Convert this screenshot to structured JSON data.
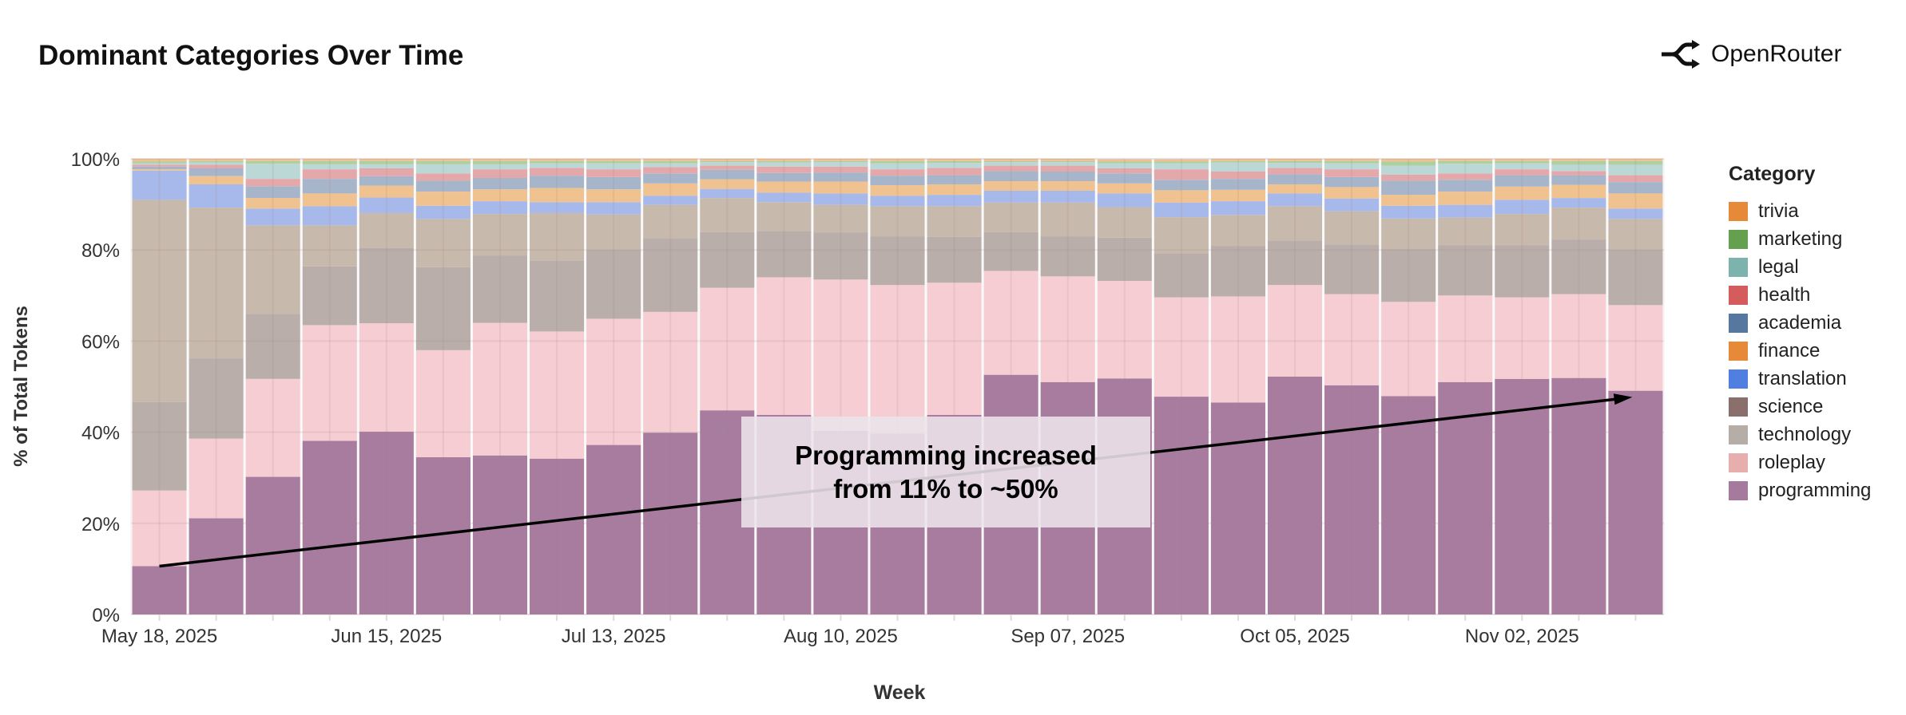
{
  "header": {
    "title": "Dominant Categories Over Time",
    "brand": "OpenRouter"
  },
  "annotation": {
    "line1": "Programming increased",
    "line2": "from 11% to ~50%"
  },
  "chart_data": {
    "type": "bar",
    "stacked": true,
    "normalized": true,
    "xlabel": "Week",
    "ylabel": "% of Total Tokens",
    "ylim": [
      0,
      100
    ],
    "y_ticks": [
      "0%",
      "20%",
      "40%",
      "60%",
      "80%",
      "100%"
    ],
    "grid": true,
    "legend_title": "Category",
    "legend_position": "right",
    "categories": [
      "May 18, 2025",
      "May 25, 2025",
      "Jun 01, 2025",
      "Jun 08, 2025",
      "Jun 15, 2025",
      "Jun 22, 2025",
      "Jun 29, 2025",
      "Jul 06, 2025",
      "Jul 13, 2025",
      "Jul 20, 2025",
      "Jul 27, 2025",
      "Aug 03, 2025",
      "Aug 10, 2025",
      "Aug 17, 2025",
      "Aug 24, 2025",
      "Aug 31, 2025",
      "Sep 07, 2025",
      "Sep 14, 2025",
      "Sep 21, 2025",
      "Sep 28, 2025",
      "Oct 05, 2025",
      "Oct 12, 2025",
      "Oct 19, 2025",
      "Oct 26, 2025",
      "Nov 02, 2025",
      "Nov 09, 2025",
      "Nov 16, 2025"
    ],
    "x_tick_labels": [
      "May 18, 2025",
      "Jun 15, 2025",
      "Jul 13, 2025",
      "Aug 10, 2025",
      "Sep 07, 2025",
      "Oct 05, 2025",
      "Nov 02, 2025"
    ],
    "legend_order": [
      "trivia",
      "marketing",
      "legal",
      "health",
      "academia",
      "finance",
      "translation",
      "science",
      "technology",
      "roleplay",
      "programming"
    ],
    "series": [
      {
        "name": "programming",
        "color": "#a57a9c",
        "fill": "#a87c9f",
        "values": [
          10.6,
          21.1,
          30.2,
          38.1,
          40.1,
          34.5,
          34.9,
          34.2,
          37.2,
          39.9,
          44.8,
          43.8,
          40.3,
          39.7,
          43.8,
          52.6,
          51.0,
          51.8,
          47.8,
          46.5,
          52.2,
          50.3,
          47.9,
          51.0,
          51.7,
          51.9,
          49.1
        ]
      },
      {
        "name": "roleplay",
        "color": "#e6aeac",
        "fill": "#f6cdd3",
        "values": [
          16.6,
          17.5,
          21.5,
          25.4,
          23.8,
          23.5,
          29.1,
          27.9,
          27.7,
          26.5,
          26.9,
          30.2,
          33.2,
          32.6,
          29.0,
          22.8,
          23.2,
          21.4,
          21.8,
          23.3,
          20.1,
          20.0,
          20.7,
          19.0,
          17.9,
          18.4,
          18.8
        ]
      },
      {
        "name": "technology",
        "color": "#b7ada7",
        "fill": "#b9aeaa",
        "values": [
          19.4,
          17.6,
          14.3,
          12.9,
          16.6,
          18.2,
          14.8,
          15.6,
          15.2,
          16.2,
          12.2,
          10.2,
          10.3,
          10.7,
          10.1,
          8.5,
          8.8,
          9.5,
          9.7,
          11.1,
          9.8,
          10.9,
          11.6,
          11.0,
          11.4,
          12.0,
          12.2
        ]
      },
      {
        "name": "science",
        "color": "#8a706c",
        "fill": "#c8b9ad",
        "values": [
          44.4,
          33.1,
          19.4,
          9.0,
          7.6,
          10.6,
          9.1,
          10.4,
          7.7,
          7.3,
          7.5,
          6.3,
          6.1,
          6.6,
          6.7,
          6.5,
          7.4,
          6.7,
          7.9,
          6.8,
          7.5,
          7.3,
          6.7,
          6.1,
          6.9,
          7.0,
          6.7
        ]
      },
      {
        "name": "translation",
        "color": "#4f7fe0",
        "fill": "#a7b9ea",
        "values": [
          6.4,
          5.1,
          3.7,
          4.2,
          3.4,
          2.9,
          2.8,
          2.4,
          2.7,
          2.0,
          2.0,
          2.1,
          2.5,
          2.3,
          2.5,
          2.6,
          2.6,
          3.0,
          3.2,
          3.0,
          2.8,
          2.8,
          2.8,
          2.8,
          3.1,
          2.1,
          2.3
        ]
      },
      {
        "name": "finance",
        "color": "#e68a3a",
        "fill": "#f0c290",
        "values": [
          0.3,
          1.8,
          2.3,
          2.8,
          2.6,
          3.1,
          2.6,
          3.1,
          2.8,
          2.7,
          2.1,
          2.4,
          2.6,
          2.3,
          2.3,
          2.1,
          2.1,
          2.2,
          2.7,
          2.5,
          2.0,
          2.5,
          2.4,
          2.9,
          2.9,
          2.9,
          3.3
        ]
      },
      {
        "name": "academia",
        "color": "#5577a0",
        "fill": "#a7b5cb",
        "values": [
          0.6,
          1.7,
          2.6,
          3.2,
          2.1,
          2.4,
          2.5,
          2.7,
          2.7,
          2.2,
          2.1,
          1.9,
          2.0,
          2.1,
          2.0,
          2.2,
          2.1,
          2.2,
          2.3,
          2.4,
          2.2,
          2.2,
          3.1,
          2.6,
          2.5,
          2.1,
          2.5
        ]
      },
      {
        "name": "health",
        "color": "#d45c5c",
        "fill": "#e5a8aa",
        "values": [
          0.4,
          0.8,
          1.6,
          2.1,
          1.7,
          1.6,
          1.9,
          1.7,
          1.7,
          1.4,
          0.9,
          1.4,
          1.3,
          1.4,
          1.6,
          1.2,
          1.3,
          1.1,
          2.3,
          1.6,
          1.4,
          1.7,
          1.3,
          1.4,
          1.3,
          0.9,
          1.5
        ]
      },
      {
        "name": "legal",
        "color": "#7db3ad",
        "fill": "#bcd8d6",
        "values": [
          0.3,
          0.5,
          3.3,
          1.1,
          0.9,
          2.0,
          1.1,
          1.0,
          1.3,
          0.8,
          0.8,
          0.9,
          1.0,
          1.3,
          1.1,
          0.8,
          0.8,
          1.1,
          1.3,
          2.0,
          1.1,
          1.3,
          2.0,
          2.1,
          1.3,
          1.4,
          2.3
        ]
      },
      {
        "name": "marketing",
        "color": "#64a050",
        "fill": "#acd0a0",
        "values": [
          0.4,
          0.3,
          0.6,
          0.7,
          0.7,
          0.7,
          0.7,
          0.5,
          0.5,
          0.5,
          0.2,
          0.3,
          0.2,
          0.5,
          0.4,
          0.2,
          0.2,
          0.4,
          0.4,
          0.3,
          0.4,
          0.5,
          0.9,
          0.6,
          0.5,
          0.8,
          0.8
        ]
      },
      {
        "name": "trivia",
        "color": "#e68a3a",
        "fill": "#f0c090",
        "values": [
          0.6,
          0.5,
          0.5,
          0.5,
          0.5,
          0.5,
          0.5,
          0.5,
          0.5,
          0.5,
          0.5,
          0.5,
          0.5,
          0.5,
          0.5,
          0.5,
          0.5,
          0.5,
          0.5,
          0.5,
          0.5,
          0.5,
          0.6,
          0.5,
          0.5,
          0.5,
          0.5
        ]
      }
    ]
  }
}
